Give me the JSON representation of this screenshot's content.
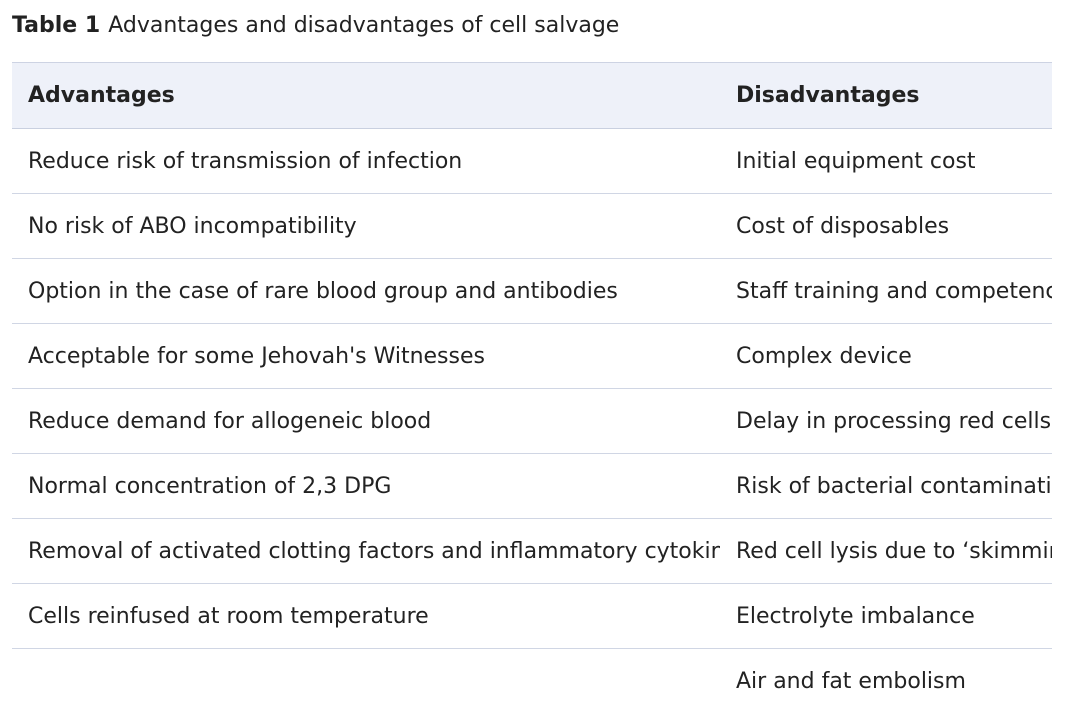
{
  "caption": {
    "label": "Table 1",
    "title": "Advantages and disadvantages of cell salvage"
  },
  "table": {
    "headers": [
      "Advantages",
      "Disadvantages"
    ],
    "rows": [
      [
        "Reduce risk of transmission of infection",
        "Initial equipment cost"
      ],
      [
        "No risk of ABO incompatibility",
        "Cost of disposables"
      ],
      [
        "Option in the case of rare blood group and antibodies",
        "Staff training and competencie"
      ],
      [
        "Acceptable for some Jehovah's Witnesses",
        "Complex device"
      ],
      [
        "Reduce demand for allogeneic blood",
        "Delay in processing red cells"
      ],
      [
        "Normal concentration of 2,3 DPG",
        "Risk of bacterial contaminatior"
      ],
      [
        "Removal of activated clotting factors and inflammatory cytokines",
        "Red cell lysis due to ‘skimming"
      ],
      [
        "Cells reinfused at room temperature",
        "Electrolyte imbalance"
      ],
      [
        "",
        "Air and fat embolism"
      ]
    ]
  }
}
